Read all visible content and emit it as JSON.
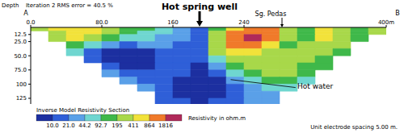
{
  "chart_data": {
    "type": "heatmap",
    "title": "Iteration 2 RMS error = 40.5 %",
    "ylabel": "Depth",
    "xlim": [
      0,
      400
    ],
    "xticks": [
      {
        "value": 0,
        "label": "0.0"
      },
      {
        "value": 80,
        "label": "80.0"
      },
      160,
      240,
      {
        "value": 400,
        "label": "400m"
      }
    ],
    "ylim": [
      0,
      135
    ],
    "yticks": [
      12.5,
      {
        "value": 25,
        "label": "25.0"
      },
      {
        "value": 50,
        "label": "50.0"
      },
      {
        "value": 75,
        "label": "75.0"
      },
      100,
      125
    ],
    "x_edges": [
      0,
      20,
      40,
      60,
      80,
      100,
      120,
      140,
      160,
      180,
      200,
      220,
      240,
      260,
      280,
      300,
      320,
      340,
      360,
      380,
      400
    ],
    "depth_edges": [
      0,
      6.25,
      12.5,
      25,
      37.5,
      50,
      62.5,
      75,
      87.5,
      100,
      112.5,
      125,
      135
    ],
    "cells": [
      [
        300,
        500,
        700,
        600,
        250,
        150,
        120,
        60,
        30,
        20,
        150,
        700,
        900,
        1200,
        300,
        150,
        500,
        300,
        150,
        400
      ],
      [
        null,
        400,
        800,
        500,
        200,
        120,
        90,
        50,
        30,
        20,
        200,
        900,
        1500,
        1000,
        250,
        120,
        600,
        350,
        120,
        300
      ],
      [
        null,
        250,
        500,
        300,
        100,
        60,
        50,
        40,
        25,
        18,
        300,
        1000,
        2000,
        900,
        200,
        150,
        500,
        300,
        100,
        null
      ],
      [
        null,
        null,
        150,
        60,
        30,
        20,
        25,
        30,
        20,
        15,
        400,
        900,
        1200,
        500,
        180,
        250,
        400,
        200,
        null,
        null
      ],
      [
        null,
        null,
        60,
        15,
        9,
        8,
        9,
        15,
        15,
        12,
        200,
        600,
        700,
        300,
        200,
        300,
        250,
        120,
        null,
        null
      ],
      [
        null,
        null,
        null,
        12,
        7,
        6,
        7,
        10,
        12,
        10,
        80,
        300,
        400,
        250,
        250,
        200,
        150,
        null,
        null,
        null
      ],
      [
        null,
        null,
        null,
        null,
        10,
        7,
        8,
        12,
        12,
        9,
        30,
        150,
        250,
        300,
        250,
        150,
        100,
        null,
        null,
        null
      ],
      [
        null,
        null,
        null,
        null,
        25,
        15,
        12,
        14,
        10,
        8,
        15,
        60,
        150,
        250,
        200,
        100,
        null,
        null,
        null,
        null
      ],
      [
        null,
        null,
        null,
        null,
        null,
        30,
        20,
        12,
        8,
        7,
        9,
        25,
        80,
        150,
        120,
        60,
        null,
        null,
        null,
        null
      ],
      [
        null,
        null,
        null,
        null,
        null,
        null,
        25,
        10,
        7,
        6,
        7,
        12,
        40,
        80,
        50,
        null,
        null,
        null,
        null,
        null
      ],
      [
        null,
        null,
        null,
        null,
        null,
        null,
        null,
        12,
        8,
        7,
        8,
        15,
        30,
        35,
        null,
        null,
        null,
        null,
        null,
        null
      ],
      [
        null,
        null,
        null,
        null,
        null,
        null,
        null,
        15,
        10,
        9,
        10,
        18,
        30,
        25,
        null,
        null,
        null,
        null,
        null,
        null
      ]
    ],
    "colorbar": {
      "title": "Inverse Model Resistivity Section",
      "label": "Resistivity in ohm.m",
      "ticks": [
        {
          "value": 10,
          "label": "10.0"
        },
        {
          "value": 21,
          "label": "21.0"
        },
        44.2,
        92.7,
        195,
        411,
        864,
        1816
      ],
      "colors": [
        "#1c2fa0",
        "#2f5fd8",
        "#5aa0e8",
        "#6fd6d0",
        "#3fb84a",
        "#a8d84a",
        "#f2e23a",
        "#f07a2a",
        "#b02a5a"
      ]
    },
    "annotations": {
      "start": "A",
      "end": "B",
      "well": "Hot spring well",
      "river": "Sg. Pedas",
      "target": "Hot water",
      "note": "Unit electrode spacing 5.00 m."
    }
  }
}
